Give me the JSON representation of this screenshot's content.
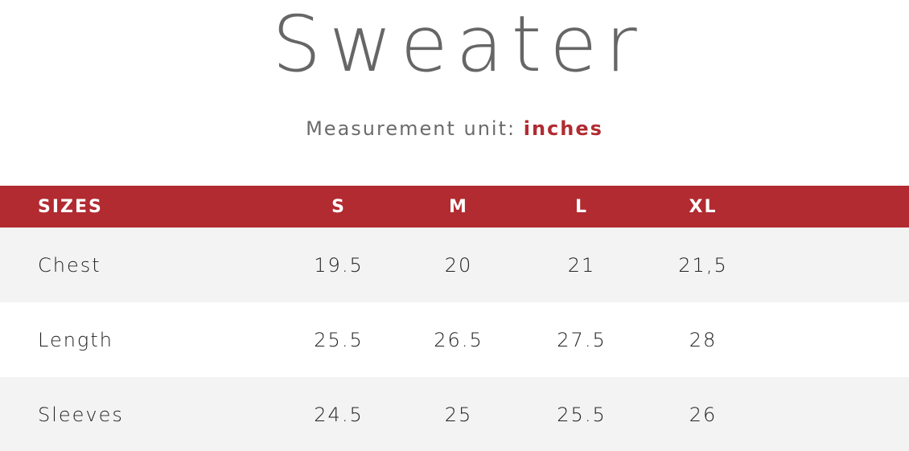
{
  "title": "Sweater",
  "subtitle": {
    "prefix": "Measurement unit:",
    "unit": "inches"
  },
  "colors": {
    "accent": "#b12b31",
    "title_text": "#666666",
    "shaded_row": "#f3f3f3"
  },
  "table": {
    "headers": [
      "SIZES",
      "S",
      "M",
      "L",
      "XL"
    ],
    "rows": [
      {
        "label": "Chest",
        "values": [
          "19.5",
          "20",
          "21",
          "21,5"
        ]
      },
      {
        "label": "Length",
        "values": [
          "25.5",
          "26.5",
          "27.5",
          "28"
        ]
      },
      {
        "label": "Sleeves",
        "values": [
          "24.5",
          "25",
          "25.5",
          "26"
        ]
      }
    ]
  }
}
